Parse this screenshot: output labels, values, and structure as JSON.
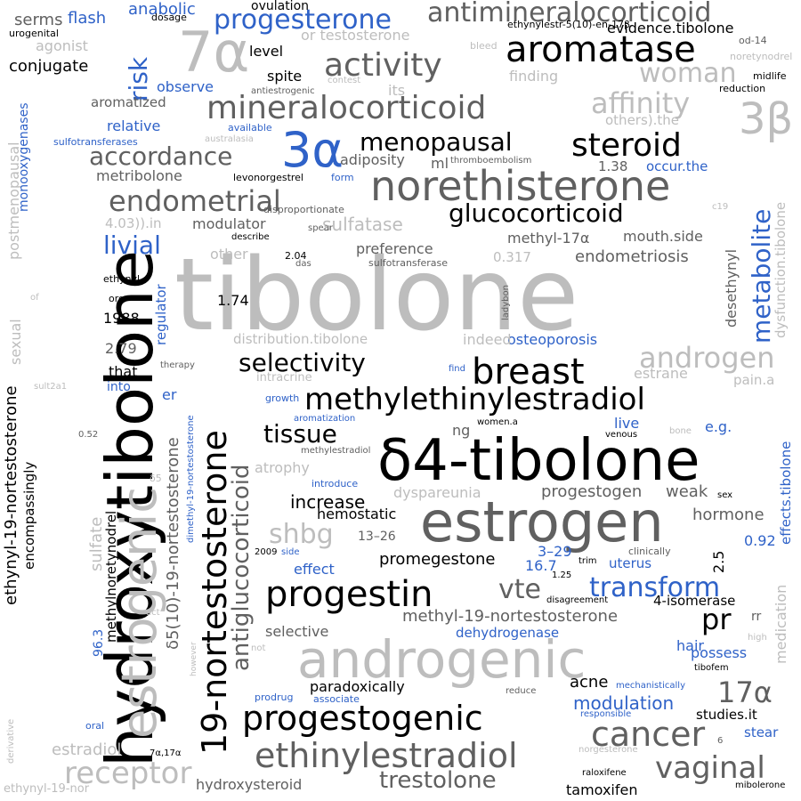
{
  "palette": {
    "black": "#000000",
    "darkgray": "#606060",
    "gray": "#bdbdbd",
    "blue": "#2f62c8"
  },
  "words": [
    {
      "text": "tibolone",
      "c": "gray"
    },
    {
      "text": "hydroxytibolone",
      "c": "black"
    },
    {
      "text": "δ4-tibolone",
      "c": "black"
    },
    {
      "text": "estrogen",
      "c": "darkgray"
    },
    {
      "text": "androgenic",
      "c": "gray"
    },
    {
      "text": "estrogenic",
      "c": "gray"
    },
    {
      "text": "19-nortestosterone",
      "c": "black"
    },
    {
      "text": "progestogenic",
      "c": "black"
    },
    {
      "text": "progestin",
      "c": "black"
    },
    {
      "text": "norethisterone",
      "c": "darkgray"
    },
    {
      "text": "aromatase",
      "c": "black"
    },
    {
      "text": "mineralocorticoid",
      "c": "darkgray"
    },
    {
      "text": "methylethinylestradiol",
      "c": "black"
    },
    {
      "text": "ethinylestradiol",
      "c": "darkgray"
    },
    {
      "text": "breast",
      "c": "black"
    },
    {
      "text": "antimineralocorticoid",
      "c": "darkgray"
    },
    {
      "text": "activity",
      "c": "darkgray"
    },
    {
      "text": "steroid",
      "c": "black"
    },
    {
      "text": "3α",
      "c": "blue"
    },
    {
      "text": "7α",
      "c": "gray"
    },
    {
      "text": "3β",
      "c": "gray"
    },
    {
      "text": "progesterone",
      "c": "blue"
    },
    {
      "text": "glucocorticoid",
      "c": "black"
    },
    {
      "text": "endometrial",
      "c": "darkgray"
    },
    {
      "text": "cancer",
      "c": "darkgray"
    },
    {
      "text": "vaginal",
      "c": "darkgray"
    },
    {
      "text": "receptor",
      "c": "gray"
    },
    {
      "text": "trestolone",
      "c": "darkgray"
    },
    {
      "text": "transform",
      "c": "blue"
    },
    {
      "text": "antiglucocorticoid",
      "c": "darkgray"
    },
    {
      "text": "selectivity",
      "c": "black"
    },
    {
      "text": "androgen",
      "c": "gray"
    },
    {
      "text": "metabolite",
      "c": "blue"
    },
    {
      "text": "affinity",
      "c": "gray"
    },
    {
      "text": "woman",
      "c": "gray"
    },
    {
      "text": "menopausal",
      "c": "black"
    },
    {
      "text": "accordance",
      "c": "darkgray"
    },
    {
      "text": "tissue",
      "c": "black"
    },
    {
      "text": "17α",
      "c": "darkgray"
    },
    {
      "text": "pr",
      "c": "black"
    },
    {
      "text": "vte",
      "c": "darkgray"
    },
    {
      "text": "shbg",
      "c": "gray"
    },
    {
      "text": "risk",
      "c": "blue"
    },
    {
      "text": "livial",
      "c": "blue"
    },
    {
      "text": "sulfate",
      "c": "gray"
    },
    {
      "text": "sulfatase",
      "c": "gray"
    },
    {
      "text": "increase",
      "c": "black"
    },
    {
      "text": "estradiol",
      "c": "gray"
    },
    {
      "text": "ethynyl-19-nortestosterone",
      "c": "black"
    },
    {
      "text": "δ5(10)-19-nortestosterone",
      "c": "darkgray"
    },
    {
      "text": "methyl-19-nortestosterone",
      "c": "darkgray"
    },
    {
      "text": "promegestone",
      "c": "black"
    },
    {
      "text": "modulation",
      "c": "blue"
    },
    {
      "text": "hydroxysteroid",
      "c": "darkgray"
    },
    {
      "text": "osteoporosis",
      "c": "blue"
    },
    {
      "text": "endometriosis",
      "c": "darkgray"
    },
    {
      "text": "progestogen",
      "c": "darkgray"
    },
    {
      "text": "hormone",
      "c": "darkgray"
    },
    {
      "text": "weak",
      "c": "darkgray"
    },
    {
      "text": "hemostatic",
      "c": "black"
    },
    {
      "text": "dyspareunia",
      "c": "gray"
    },
    {
      "text": "atrophy",
      "c": "gray"
    },
    {
      "text": "paradoxically",
      "c": "black"
    },
    {
      "text": "selective",
      "c": "darkgray"
    },
    {
      "text": "dehydrogenase",
      "c": "blue"
    },
    {
      "text": "acne",
      "c": "black"
    },
    {
      "text": "tamoxifen",
      "c": "black"
    },
    {
      "text": "flash",
      "c": "blue"
    },
    {
      "text": "anabolic",
      "c": "blue"
    },
    {
      "text": "serms",
      "c": "darkgray"
    },
    {
      "text": "conjugate",
      "c": "black"
    },
    {
      "text": "agonist",
      "c": "gray"
    },
    {
      "text": "aromatized",
      "c": "darkgray"
    },
    {
      "text": "observe",
      "c": "blue"
    },
    {
      "text": "relative",
      "c": "blue"
    },
    {
      "text": "metribolone",
      "c": "darkgray"
    },
    {
      "text": "level",
      "c": "black"
    },
    {
      "text": "spite",
      "c": "black"
    },
    {
      "text": "adiposity",
      "c": "darkgray"
    },
    {
      "text": "ml",
      "c": "darkgray"
    },
    {
      "text": "modulator",
      "c": "darkgray"
    },
    {
      "text": "preference",
      "c": "darkgray"
    },
    {
      "text": "methyl-17α",
      "c": "darkgray"
    },
    {
      "text": "mouth.side",
      "c": "darkgray"
    },
    {
      "text": "desethynyl",
      "c": "darkgray"
    },
    {
      "text": "distribution.tibolone",
      "c": "gray"
    },
    {
      "text": "indeed",
      "c": "gray"
    },
    {
      "text": "estrane",
      "c": "gray"
    },
    {
      "text": "e.g.",
      "c": "blue"
    },
    {
      "text": "live",
      "c": "blue"
    },
    {
      "text": "ng",
      "c": "darkgray"
    },
    {
      "text": "uterus",
      "c": "blue"
    },
    {
      "text": "possess",
      "c": "blue"
    },
    {
      "text": "hair",
      "c": "blue"
    },
    {
      "text": "studies.it",
      "c": "black"
    },
    {
      "text": "stear",
      "c": "blue"
    },
    {
      "text": "effect",
      "c": "blue"
    },
    {
      "text": "regulator",
      "c": "blue"
    },
    {
      "text": "methylnoretynodrel",
      "c": "black"
    },
    {
      "text": "encompassingly",
      "c": "black"
    },
    {
      "text": "postmenopausal",
      "c": "gray"
    },
    {
      "text": "monooxygenases",
      "c": "blue"
    },
    {
      "text": "sexual",
      "c": "gray"
    },
    {
      "text": "medication",
      "c": "gray"
    },
    {
      "text": "effects.tibolone",
      "c": "blue"
    },
    {
      "text": "dysfunction.tibolone",
      "c": "gray"
    },
    {
      "text": "1.74",
      "c": "black"
    },
    {
      "text": "1988",
      "c": "black"
    },
    {
      "text": "2.79",
      "c": "darkgray"
    },
    {
      "text": "that",
      "c": "black"
    },
    {
      "text": "into",
      "c": "blue"
    },
    {
      "text": "er",
      "c": "blue"
    },
    {
      "text": "13–26",
      "c": "darkgray"
    },
    {
      "text": "3–29",
      "c": "blue"
    },
    {
      "text": "16.7",
      "c": "blue"
    },
    {
      "text": "2.5",
      "c": "black"
    },
    {
      "text": "0.92",
      "c": "blue"
    },
    {
      "text": "96.3",
      "c": "blue"
    },
    {
      "text": "evidence.tibolone",
      "c": "black"
    },
    {
      "text": "ovulation",
      "c": "black"
    },
    {
      "text": "or testosterone",
      "c": "gray"
    },
    {
      "text": "finding",
      "c": "gray"
    },
    {
      "text": "its",
      "c": "gray"
    },
    {
      "text": "others).the",
      "c": "gray"
    },
    {
      "text": "occur.the",
      "c": "blue"
    },
    {
      "text": "1.38",
      "c": "darkgray"
    },
    {
      "text": "4.03)).in",
      "c": "gray"
    },
    {
      "text": "other",
      "c": "gray"
    },
    {
      "text": "0.317",
      "c": "gray"
    },
    {
      "text": "4-isomerase",
      "c": "black"
    },
    {
      "text": "pain.a",
      "c": "gray"
    },
    {
      "text": "ethynylestr-5(10)-en-17β",
      "c": "black"
    },
    {
      "text": "dosage",
      "c": "black"
    },
    {
      "text": "urogenital",
      "c": "black"
    },
    {
      "text": "bleed",
      "c": "gray"
    },
    {
      "text": "od-14",
      "c": "darkgray"
    },
    {
      "text": "noretynodrel",
      "c": "gray"
    },
    {
      "text": "midlife",
      "c": "black"
    },
    {
      "text": "reduction",
      "c": "black"
    },
    {
      "text": "antiestrogenic",
      "c": "darkgray"
    },
    {
      "text": "contest",
      "c": "gray"
    },
    {
      "text": "available",
      "c": "blue"
    },
    {
      "text": "sulfotransferases",
      "c": "blue"
    },
    {
      "text": "australasia",
      "c": "gray"
    },
    {
      "text": "thromboembolism",
      "c": "darkgray"
    },
    {
      "text": "levonorgestrel",
      "c": "black"
    },
    {
      "text": "form",
      "c": "blue"
    },
    {
      "text": "disproportionate",
      "c": "darkgray"
    },
    {
      "text": "describe",
      "c": "black"
    },
    {
      "text": "spear",
      "c": "darkgray"
    },
    {
      "text": "c19",
      "c": "gray"
    },
    {
      "text": "2.04",
      "c": "black"
    },
    {
      "text": "das",
      "c": "darkgray"
    },
    {
      "text": "sulfotransferase",
      "c": "darkgray"
    },
    {
      "text": "ethynyl",
      "c": "black"
    },
    {
      "text": "org",
      "c": "black"
    },
    {
      "text": "of",
      "c": "gray"
    },
    {
      "text": "ladybon",
      "c": "darkgray"
    },
    {
      "text": "therapy",
      "c": "darkgray"
    },
    {
      "text": "find",
      "c": "blue"
    },
    {
      "text": "intracrine",
      "c": "gray"
    },
    {
      "text": "sult2a1",
      "c": "gray"
    },
    {
      "text": "growth",
      "c": "blue"
    },
    {
      "text": "aromatization",
      "c": "blue"
    },
    {
      "text": "methylestradiol",
      "c": "darkgray"
    },
    {
      "text": "women.a",
      "c": "black"
    },
    {
      "text": "venous",
      "c": "black"
    },
    {
      "text": "bone",
      "c": "gray"
    },
    {
      "text": "0.52",
      "c": "darkgray"
    },
    {
      "text": "δ5",
      "c": "gray"
    },
    {
      "text": "dimethyl-19-nortestosterone",
      "c": "blue"
    },
    {
      "text": "introduce",
      "c": "blue"
    },
    {
      "text": "sex",
      "c": "black"
    },
    {
      "text": "clinically",
      "c": "darkgray"
    },
    {
      "text": "2009",
      "c": "black"
    },
    {
      "text": "side",
      "c": "blue"
    },
    {
      "text": "trim",
      "c": "black"
    },
    {
      "text": "1.25",
      "c": "black"
    },
    {
      "text": "disagreement",
      "c": "black"
    },
    {
      "text": "act",
      "c": "gray"
    },
    {
      "text": "not",
      "c": "gray"
    },
    {
      "text": "however",
      "c": "gray"
    },
    {
      "text": "derivative",
      "c": "gray"
    },
    {
      "text": "prodrug",
      "c": "blue"
    },
    {
      "text": "associate",
      "c": "blue"
    },
    {
      "text": "reduce",
      "c": "darkgray"
    },
    {
      "text": "mechanistically",
      "c": "blue"
    },
    {
      "text": "responsible",
      "c": "blue"
    },
    {
      "text": "norgesterone",
      "c": "gray"
    },
    {
      "text": "rr",
      "c": "darkgray"
    },
    {
      "text": "high",
      "c": "gray"
    },
    {
      "text": "tibofem",
      "c": "black"
    },
    {
      "text": "oral",
      "c": "blue"
    },
    {
      "text": "7α,17α",
      "c": "black"
    },
    {
      "text": "6",
      "c": "darkgray"
    },
    {
      "text": "raloxifene",
      "c": "black"
    },
    {
      "text": "mibolerone",
      "c": "black"
    },
    {
      "text": "ethynyl-19-nor",
      "c": "gray"
    }
  ]
}
